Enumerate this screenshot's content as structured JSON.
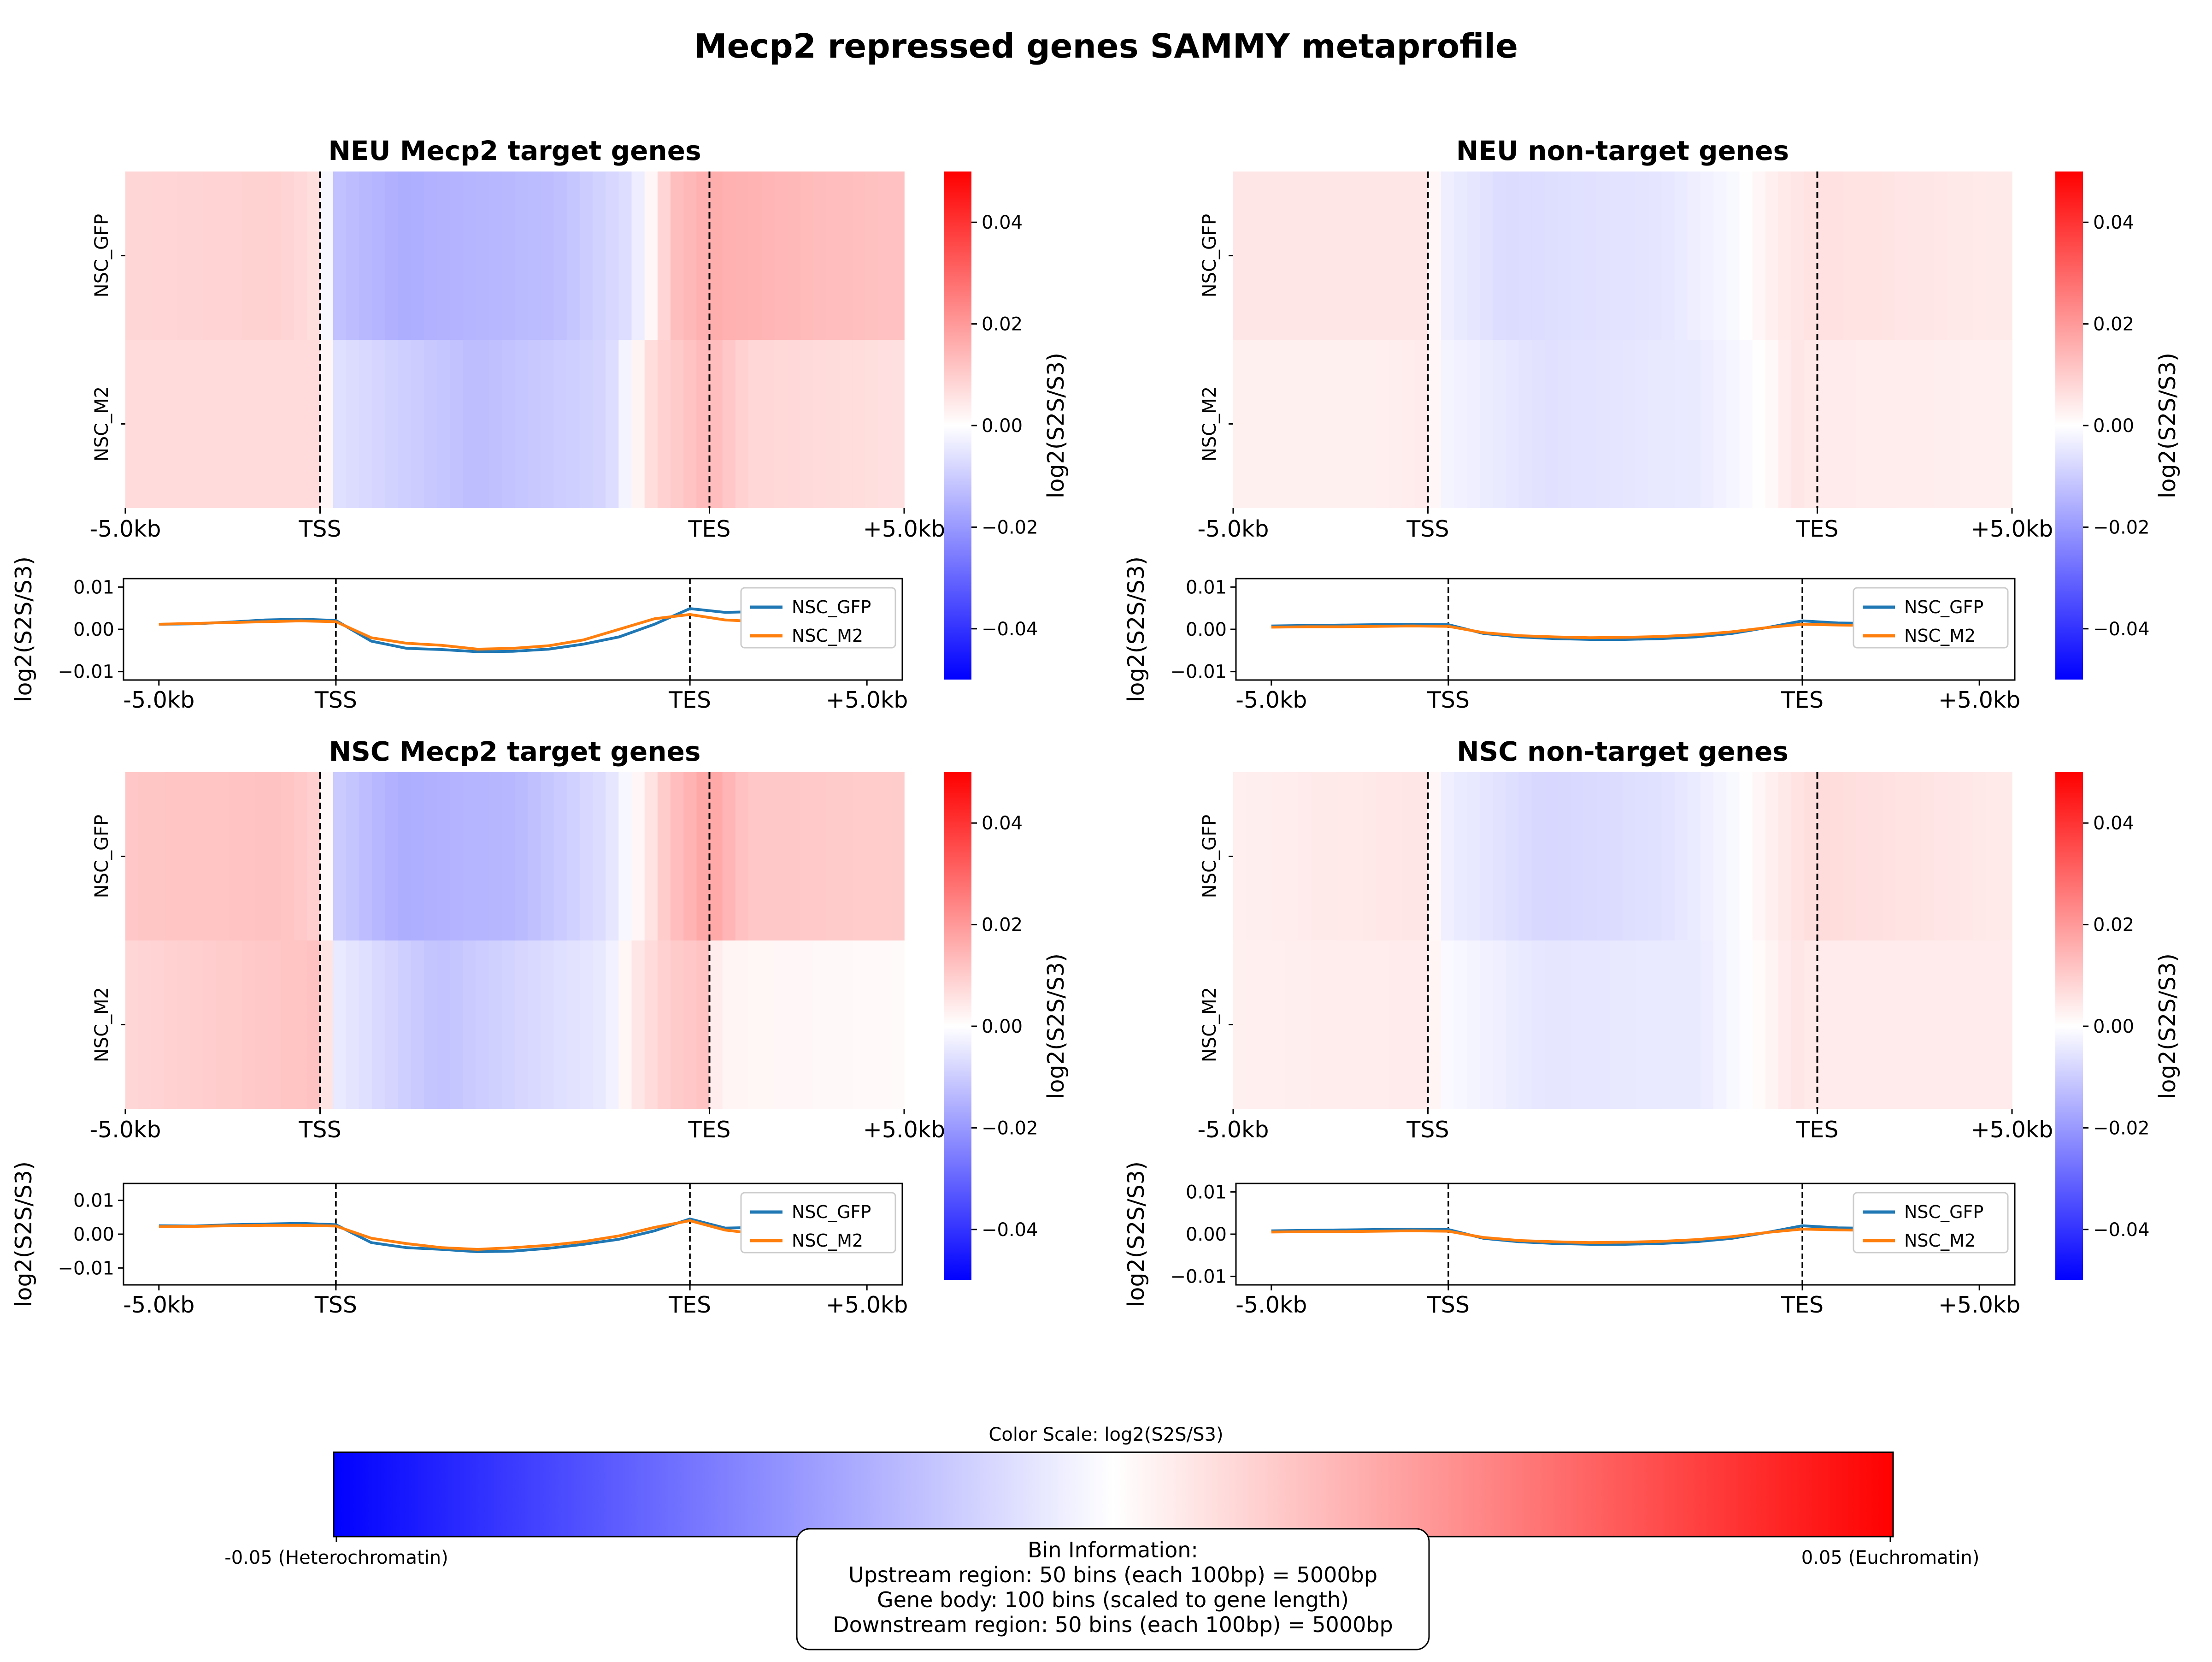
{
  "title": "Mecp2 repressed genes SAMMY metaprofile",
  "colormap": {
    "min": -0.05,
    "max": 0.05,
    "low_color": "#0000ff",
    "mid_color": "#ffffff",
    "high_color": "#ff0000"
  },
  "panel_titles": [
    "NEU Mecp2 target genes",
    "NEU non-target genes",
    "NSC Mecp2 target genes",
    "NSC non-target genes"
  ],
  "x_tick_labels": [
    "-5.0kb",
    "TSS",
    "TES",
    "+5.0kb"
  ],
  "heatmap_row_labels": [
    "NSC_GFP",
    "NSC_M2"
  ],
  "colorbar": {
    "label": "log2(S2S/S3)",
    "ticks": [
      "0.04",
      "0.02",
      "0.00",
      "−0.02",
      "−0.04"
    ]
  },
  "profile": {
    "ylabel": "log2(S2S/S3)",
    "yticks": [
      "0.01",
      "0.00",
      "−0.01"
    ],
    "legend": [
      "NSC_GFP",
      "NSC_M2"
    ],
    "colors": [
      "#1f77b4",
      "#ff7f0e"
    ]
  },
  "bottom_colorbar": {
    "title": "Color Scale: log2(S2S/S3)",
    "left_label": "-0.05 (Heterochromatin)",
    "right_label": "0.05 (Euchromatin)"
  },
  "bin_info": {
    "title": "Bin Information:",
    "lines": [
      "Upstream region: 50 bins (each 100bp) = 5000bp",
      "Gene body: 100 bins (scaled to gene length)",
      "Downstream region: 50 bins (each 100bp) = 5000bp"
    ]
  },
  "chart_data": [
    {
      "type": "heatmap",
      "title": "NEU Mecp2 target genes",
      "rows": [
        "NSC_GFP",
        "NSC_M2"
      ],
      "x_range": [
        -5000,
        5000
      ],
      "x_ticks": [
        "-5.0kb",
        "TSS",
        "TES",
        "+5.0kb"
      ],
      "series": [
        {
          "name": "NSC_GFP",
          "knots": [
            [
              0,
              0.008
            ],
            [
              0.2,
              0.009
            ],
            [
              0.25,
              0.006
            ],
            [
              0.27,
              -0.012
            ],
            [
              0.35,
              -0.016
            ],
            [
              0.55,
              -0.013
            ],
            [
              0.65,
              -0.006
            ],
            [
              0.68,
              0.003
            ],
            [
              0.7,
              0.012
            ],
            [
              0.75,
              0.016
            ],
            [
              0.9,
              0.013
            ],
            [
              1,
              0.012
            ]
          ]
        },
        {
          "name": "NSC_M2",
          "knots": [
            [
              0,
              0.007
            ],
            [
              0.25,
              0.007
            ],
            [
              0.27,
              -0.006
            ],
            [
              0.45,
              -0.013
            ],
            [
              0.62,
              -0.008
            ],
            [
              0.65,
              0.0
            ],
            [
              0.68,
              0.008
            ],
            [
              0.75,
              0.014
            ],
            [
              0.8,
              0.008
            ],
            [
              1,
              0.006
            ]
          ]
        }
      ],
      "profile": {
        "x": [
          -5.0,
          -4.0,
          -3.0,
          -2.0,
          -1.0,
          0,
          1,
          2,
          3,
          4,
          5,
          6,
          7,
          8,
          9,
          10.0,
          11.0,
          12.0,
          13.0,
          14.0,
          15.0
        ],
        "ylim": [
          -0.012,
          0.012
        ],
        "NSC_GFP": [
          0.0012,
          0.0013,
          0.0017,
          0.0022,
          0.0024,
          0.0021,
          -0.0028,
          -0.0045,
          -0.0048,
          -0.0053,
          -0.0052,
          -0.0047,
          -0.0035,
          -0.0018,
          0.0012,
          0.0049,
          0.004,
          0.0042,
          0.0035,
          0.0033,
          0.003
        ],
        "NSC_M2": [
          0.0012,
          0.0014,
          0.0016,
          0.0018,
          0.002,
          0.0018,
          -0.002,
          -0.0033,
          -0.0038,
          -0.0047,
          -0.0045,
          -0.0039,
          -0.0025,
          0.0,
          0.0025,
          0.0035,
          0.0022,
          0.0018,
          0.002,
          0.0023,
          0.0025
        ]
      }
    },
    {
      "type": "heatmap",
      "title": "NEU non-target genes",
      "rows": [
        "NSC_GFP",
        "NSC_M2"
      ],
      "x_range": [
        -5000,
        5000
      ],
      "x_ticks": [
        "-5.0kb",
        "TSS",
        "TES",
        "+5.0kb"
      ],
      "series": [
        {
          "name": "NSC_GFP",
          "knots": [
            [
              0,
              0.005
            ],
            [
              0.25,
              0.005
            ],
            [
              0.27,
              -0.003
            ],
            [
              0.35,
              -0.007
            ],
            [
              0.55,
              -0.005
            ],
            [
              0.65,
              -0.001
            ],
            [
              0.7,
              0.004
            ],
            [
              0.75,
              0.006
            ],
            [
              1,
              0.004
            ]
          ]
        },
        {
          "name": "NSC_M2",
          "knots": [
            [
              0,
              0.003
            ],
            [
              0.18,
              0.003
            ],
            [
              0.25,
              0.004
            ],
            [
              0.27,
              -0.002
            ],
            [
              0.4,
              -0.006
            ],
            [
              0.6,
              -0.004
            ],
            [
              0.68,
              0.0
            ],
            [
              0.72,
              0.005
            ],
            [
              0.75,
              0.004
            ],
            [
              1,
              0.003
            ]
          ]
        }
      ],
      "profile": {
        "x": [
          -5.0,
          -4.0,
          -3.0,
          -2.0,
          -1.0,
          0,
          1,
          2,
          3,
          4,
          5,
          6,
          7,
          8,
          9,
          10.0,
          11.0,
          12.0,
          13.0,
          14.0,
          15.0
        ],
        "ylim": [
          -0.012,
          0.012
        ],
        "NSC_GFP": [
          0.0008,
          0.0009,
          0.001,
          0.0011,
          0.0012,
          0.0011,
          -0.001,
          -0.0018,
          -0.0022,
          -0.0024,
          -0.0024,
          -0.0022,
          -0.0018,
          -0.001,
          0.0004,
          0.002,
          0.0015,
          0.0014,
          0.0015,
          0.0016,
          0.0016
        ],
        "NSC_M2": [
          0.0005,
          0.0006,
          0.0006,
          0.0007,
          0.0008,
          0.0007,
          -0.0008,
          -0.0015,
          -0.0018,
          -0.002,
          -0.0019,
          -0.0017,
          -0.0013,
          -0.0006,
          0.0004,
          0.0012,
          0.001,
          0.0009,
          0.001,
          0.001,
          0.0011
        ]
      }
    },
    {
      "type": "heatmap",
      "title": "NSC Mecp2 target genes",
      "rows": [
        "NSC_GFP",
        "NSC_M2"
      ],
      "x_range": [
        -5000,
        5000
      ],
      "x_ticks": [
        "-5.0kb",
        "TSS",
        "TES",
        "+5.0kb"
      ],
      "series": [
        {
          "name": "NSC_GFP",
          "knots": [
            [
              0,
              0.011
            ],
            [
              0.2,
              0.012
            ],
            [
              0.25,
              0.009
            ],
            [
              0.27,
              -0.01
            ],
            [
              0.35,
              -0.016
            ],
            [
              0.5,
              -0.014
            ],
            [
              0.62,
              -0.006
            ],
            [
              0.66,
              0.002
            ],
            [
              0.7,
              0.012
            ],
            [
              0.75,
              0.018
            ],
            [
              0.8,
              0.011
            ],
            [
              1,
              0.01
            ]
          ]
        },
        {
          "name": "NSC_M2",
          "knots": [
            [
              0,
              0.008
            ],
            [
              0.25,
              0.012
            ],
            [
              0.27,
              -0.004
            ],
            [
              0.4,
              -0.012
            ],
            [
              0.62,
              -0.004
            ],
            [
              0.65,
              0.004
            ],
            [
              0.7,
              0.01
            ],
            [
              0.75,
              0.012
            ],
            [
              0.76,
              0.002
            ],
            [
              1,
              0.001
            ]
          ]
        }
      ],
      "profile": {
        "x": [
          -5.0,
          -4.0,
          -3.0,
          -2.0,
          -1.0,
          0,
          1,
          2,
          3,
          4,
          5,
          6,
          7,
          8,
          9,
          10.0,
          11.0,
          12.0,
          13.0,
          14.0,
          15.0
        ],
        "ylim": [
          -0.015,
          0.015
        ],
        "NSC_GFP": [
          0.0025,
          0.0024,
          0.0028,
          0.003,
          0.0032,
          0.0028,
          -0.0025,
          -0.004,
          -0.0045,
          -0.0052,
          -0.005,
          -0.0042,
          -0.003,
          -0.0015,
          0.001,
          0.0045,
          0.0018,
          0.002,
          0.0022,
          0.0024,
          0.0025
        ],
        "NSC_M2": [
          0.0022,
          0.0023,
          0.0025,
          0.0026,
          0.0026,
          0.0024,
          -0.0012,
          -0.0028,
          -0.004,
          -0.0045,
          -0.004,
          -0.0033,
          -0.0022,
          -0.0005,
          0.002,
          0.004,
          0.0012,
          0.0,
          0.0005,
          0.001,
          0.002
        ]
      }
    },
    {
      "type": "heatmap",
      "title": "NSC non-target genes",
      "rows": [
        "NSC_GFP",
        "NSC_M2"
      ],
      "x_range": [
        -5000,
        5000
      ],
      "x_ticks": [
        "-5.0kb",
        "TSS",
        "TES",
        "+5.0kb"
      ],
      "series": [
        {
          "name": "NSC_GFP",
          "knots": [
            [
              0,
              0.003
            ],
            [
              0.1,
              0.004
            ],
            [
              0.25,
              0.005
            ],
            [
              0.27,
              -0.003
            ],
            [
              0.4,
              -0.008
            ],
            [
              0.55,
              -0.006
            ],
            [
              0.65,
              -0.001
            ],
            [
              0.7,
              0.004
            ],
            [
              0.75,
              0.007
            ],
            [
              1,
              0.004
            ]
          ]
        },
        {
          "name": "NSC_M2",
          "knots": [
            [
              0,
              0.003
            ],
            [
              0.25,
              0.004
            ],
            [
              0.27,
              -0.001
            ],
            [
              0.4,
              -0.005
            ],
            [
              0.6,
              -0.004
            ],
            [
              0.68,
              0.001
            ],
            [
              0.72,
              0.005
            ],
            [
              0.75,
              0.004
            ],
            [
              1,
              0.004
            ]
          ]
        }
      ],
      "profile": {
        "x": [
          -5.0,
          -4.0,
          -3.0,
          -2.0,
          -1.0,
          0,
          1,
          2,
          3,
          4,
          5,
          6,
          7,
          8,
          9,
          10.0,
          11.0,
          12.0,
          13.0,
          14.0,
          15.0
        ],
        "ylim": [
          -0.012,
          0.012
        ],
        "NSC_GFP": [
          0.0008,
          0.0009,
          0.001,
          0.0011,
          0.0012,
          0.0011,
          -0.001,
          -0.0018,
          -0.0022,
          -0.0024,
          -0.0024,
          -0.0022,
          -0.0018,
          -0.001,
          0.0004,
          0.002,
          0.0015,
          0.0014,
          0.0015,
          0.0016,
          0.0016
        ],
        "NSC_M2": [
          0.0005,
          0.0006,
          0.0006,
          0.0007,
          0.0008,
          0.0007,
          -0.0008,
          -0.0015,
          -0.0018,
          -0.002,
          -0.0019,
          -0.0017,
          -0.0013,
          -0.0006,
          0.0004,
          0.0012,
          0.001,
          0.0009,
          0.001,
          0.001,
          0.0011
        ]
      }
    }
  ]
}
